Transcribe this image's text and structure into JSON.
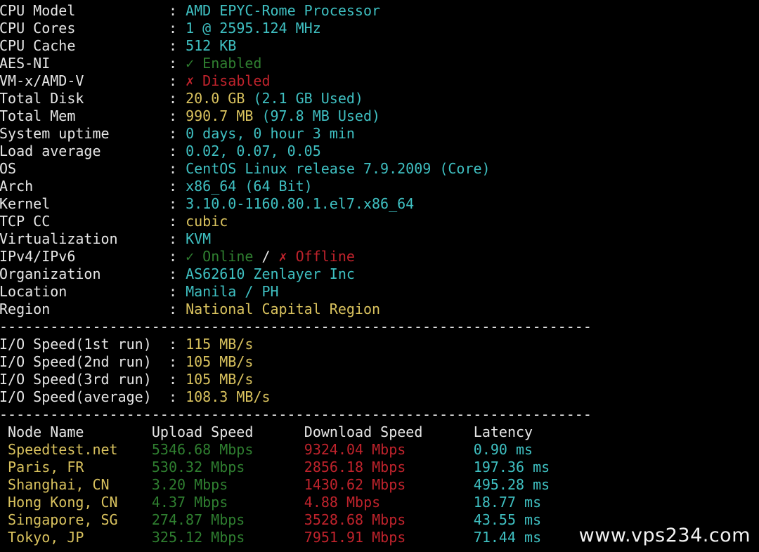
{
  "colors": {
    "cyan": "#3fc0c2",
    "yellow": "#d9c25e",
    "green": "#2f7f30",
    "red": "#c0232c",
    "white": "#e6e6e6"
  },
  "system_info": [
    {
      "label": "CPU Model",
      "segments": [
        {
          "text": "AMD EPYC-Rome Processor",
          "color": "cyan"
        }
      ]
    },
    {
      "label": "CPU Cores",
      "segments": [
        {
          "text": "1 @ 2595.124 MHz",
          "color": "cyan"
        }
      ]
    },
    {
      "label": "CPU Cache",
      "segments": [
        {
          "text": "512 KB",
          "color": "cyan"
        }
      ]
    },
    {
      "label": "AES-NI",
      "segments": [
        {
          "text": "✓ Enabled",
          "color": "green"
        }
      ]
    },
    {
      "label": "VM-x/AMD-V",
      "segments": [
        {
          "text": "✗ Disabled",
          "color": "red"
        }
      ]
    },
    {
      "label": "Total Disk",
      "segments": [
        {
          "text": "20.0 GB ",
          "color": "yellow"
        },
        {
          "text": "(2.1 GB Used)",
          "color": "cyan"
        }
      ]
    },
    {
      "label": "Total Mem",
      "segments": [
        {
          "text": "990.7 MB ",
          "color": "yellow"
        },
        {
          "text": "(97.8 MB Used)",
          "color": "cyan"
        }
      ]
    },
    {
      "label": "System uptime",
      "segments": [
        {
          "text": "0 days, 0 hour 3 min",
          "color": "cyan"
        }
      ]
    },
    {
      "label": "Load average",
      "segments": [
        {
          "text": "0.02, 0.07, 0.05",
          "color": "cyan"
        }
      ]
    },
    {
      "label": "OS",
      "segments": [
        {
          "text": "CentOS Linux release 7.9.2009 (Core)",
          "color": "cyan"
        }
      ]
    },
    {
      "label": "Arch",
      "segments": [
        {
          "text": "x86_64 (64 Bit)",
          "color": "cyan"
        }
      ]
    },
    {
      "label": "Kernel",
      "segments": [
        {
          "text": "3.10.0-1160.80.1.el7.x86_64",
          "color": "cyan"
        }
      ]
    },
    {
      "label": "TCP CC",
      "segments": [
        {
          "text": "cubic",
          "color": "yellow"
        }
      ]
    },
    {
      "label": "Virtualization",
      "segments": [
        {
          "text": "KVM",
          "color": "cyan"
        }
      ]
    },
    {
      "label": "IPv4/IPv6",
      "segments": [
        {
          "text": "✓ Online",
          "color": "green"
        },
        {
          "text": " / ",
          "color": "white"
        },
        {
          "text": "✗ Offline",
          "color": "red"
        }
      ]
    },
    {
      "label": "Organization",
      "segments": [
        {
          "text": "AS62610 Zenlayer Inc",
          "color": "cyan"
        }
      ]
    },
    {
      "label": "Location",
      "segments": [
        {
          "text": "Manila / PH",
          "color": "cyan"
        }
      ]
    },
    {
      "label": "Region",
      "segments": [
        {
          "text": "National Capital Region",
          "color": "yellow"
        }
      ]
    }
  ],
  "separator": "----------------------------------------------------------------------",
  "io_speed": [
    {
      "label": "I/O Speed(1st run)",
      "segments": [
        {
          "text": "115 MB/s",
          "color": "yellow"
        }
      ]
    },
    {
      "label": "I/O Speed(2nd run)",
      "segments": [
        {
          "text": "105 MB/s",
          "color": "yellow"
        }
      ]
    },
    {
      "label": "I/O Speed(3rd run)",
      "segments": [
        {
          "text": "105 MB/s",
          "color": "yellow"
        }
      ]
    },
    {
      "label": "I/O Speed(average)",
      "segments": [
        {
          "text": "108.3 MB/s",
          "color": "yellow"
        }
      ]
    }
  ],
  "speedtest": {
    "headers": [
      "Node Name",
      "Upload Speed",
      "Download Speed",
      "Latency"
    ],
    "rows": [
      [
        "Speedtest.net",
        "5346.68 Mbps",
        "9324.04 Mbps",
        "0.90 ms"
      ],
      [
        "Paris, FR",
        "530.32 Mbps",
        "2856.18 Mbps",
        "197.36 ms"
      ],
      [
        "Shanghai, CN",
        "3.20 Mbps",
        "1430.62 Mbps",
        "495.28 ms"
      ],
      [
        "Hong Kong, CN",
        "4.37 Mbps",
        "4.88 Mbps",
        "18.77 ms"
      ],
      [
        "Singapore, SG",
        "274.87 Mbps",
        "3528.68 Mbps",
        "43.55 ms"
      ],
      [
        "Tokyo, JP",
        "325.12 Mbps",
        "7951.91 Mbps",
        "71.44 ms"
      ]
    ]
  },
  "watermark": "www.vps234.com"
}
